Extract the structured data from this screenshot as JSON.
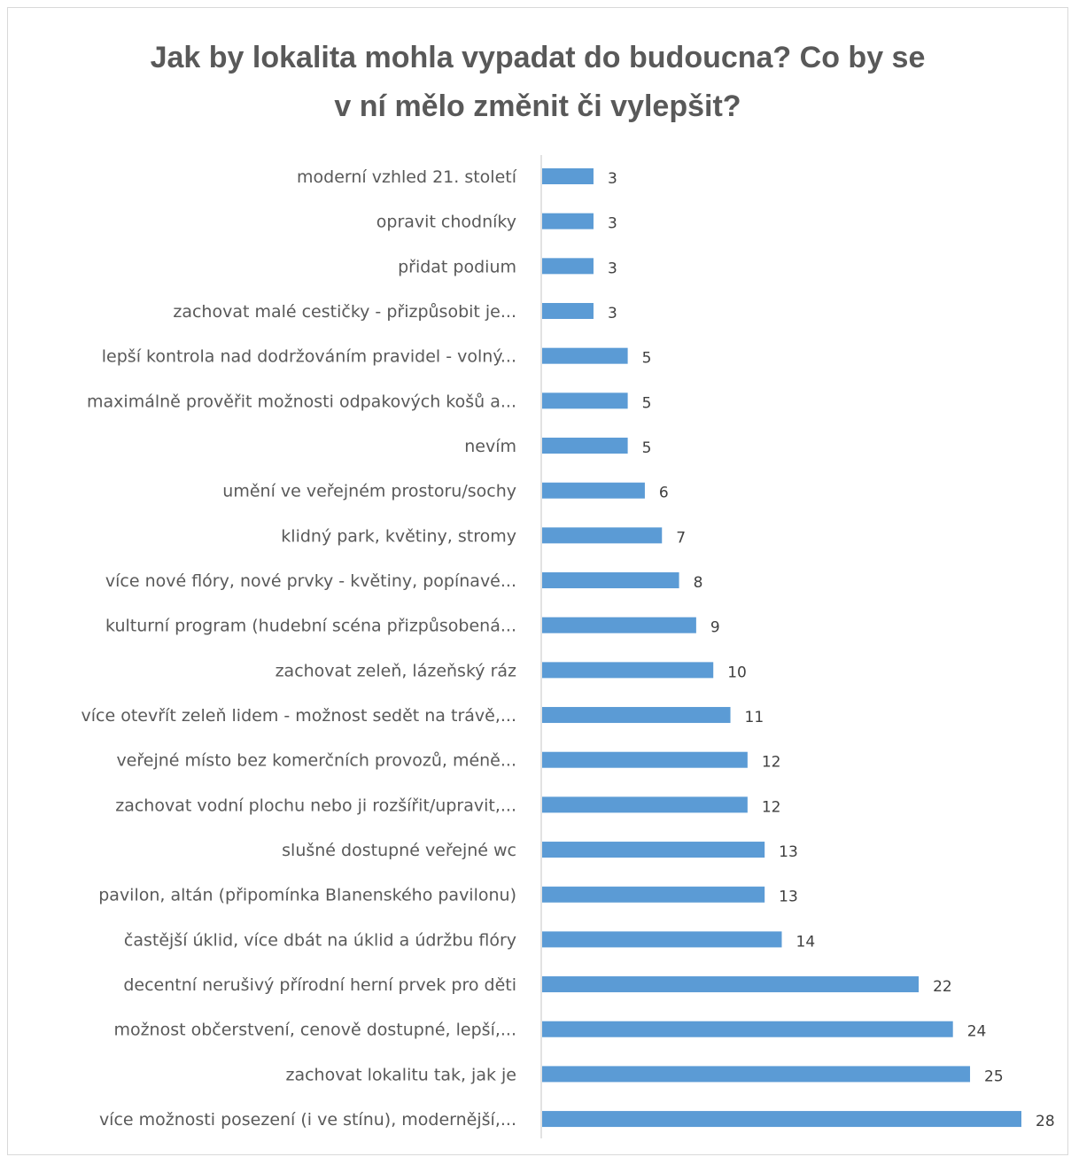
{
  "chart_data": {
    "type": "bar",
    "orientation": "horizontal",
    "title": "Jak by lokalita mohla vypadat do budoucna? Co by se v ní mělo změnit či vylepšit?",
    "title_lines": [
      "Jak by lokalita mohla vypadat do budoucna? Co by se",
      "v ní mělo změnit či vylepšit?"
    ],
    "categories": [
      "moderní vzhled 21. století",
      "opravit chodníky",
      "přidat podium",
      "zachovat malé cestičky - přizpůsobit je...",
      "lepší kontrola nad dodržováním pravidel - volný...",
      "maximálně prověřit možnosti odpakových košů a...",
      "nevím",
      "umění ve veřejném prostoru/sochy",
      "klidný park, květiny, stromy",
      "více nové flóry, nové prvky - květiny, popínavé...",
      "kulturní program (hudební scéna přizpůsobená...",
      "zachovat zeleň, lázeňský ráz",
      "více otevřít zeleň lidem - možnost sedět na trávě,...",
      "veřejné místo bez komerčních provozů, méně...",
      "zachovat vodní plochu nebo ji rozšířit/upravit,...",
      "slušné dostupné veřejné wc",
      "pavilon, altán (připomínka Blanenského pavilonu)",
      "častější úklid, více dbát na úklid a údržbu flóry",
      "decentní nerušivý přírodní herní prvek pro děti",
      "možnost občerstvení, cenově dostupné, lepší,...",
      "zachovat lokalitu tak, jak je",
      "více možnosti posezení (i ve stínu), modernější,..."
    ],
    "values": [
      3,
      3,
      3,
      3,
      5,
      5,
      5,
      6,
      7,
      8,
      9,
      10,
      11,
      12,
      12,
      13,
      13,
      14,
      22,
      24,
      25,
      28
    ],
    "xlim": [
      0,
      28
    ],
    "grid": false,
    "legend": "none",
    "data_labels": true,
    "bar_color": "#5b9bd5",
    "axis_color": "#d9d9d9"
  }
}
